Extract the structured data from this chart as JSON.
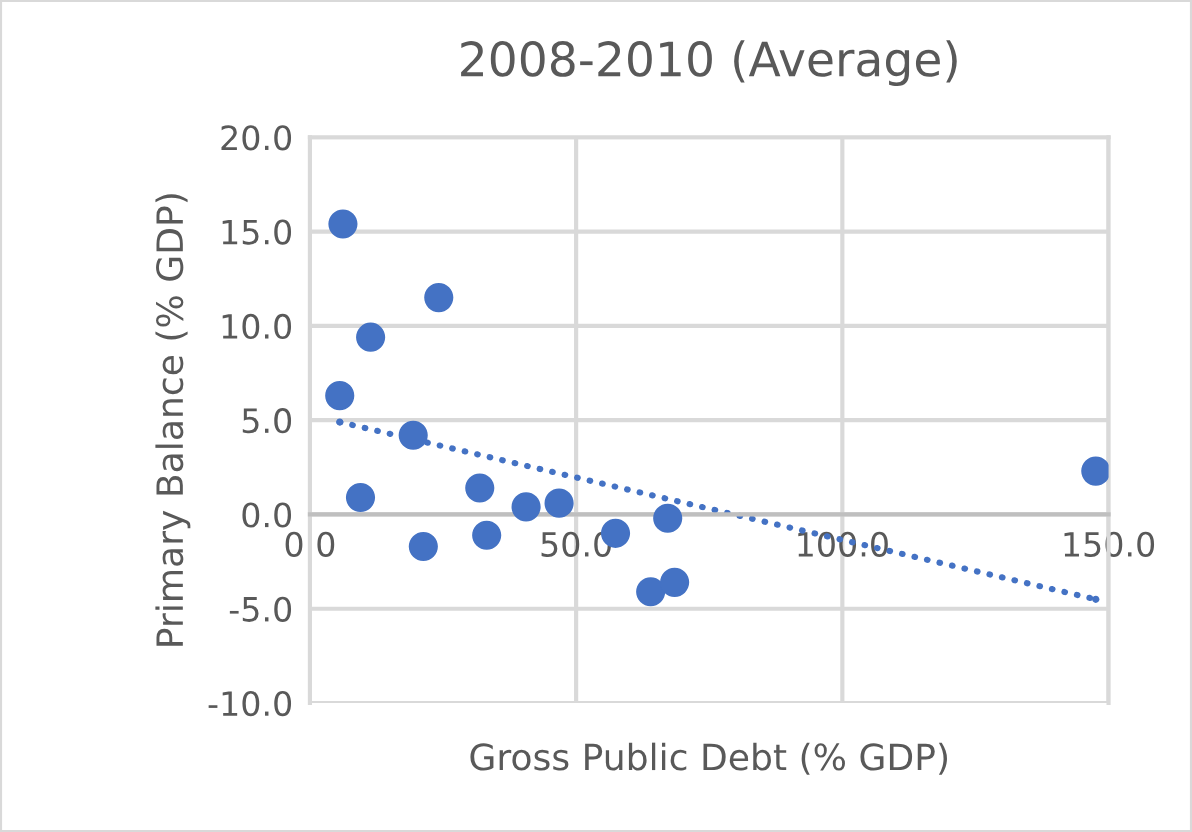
{
  "chart_data": {
    "type": "scatter",
    "title": "2008-2010 (Average)",
    "xlabel": "Gross Public Debt (% GDP)",
    "ylabel": "Primary Balance (% GDP)",
    "series": [
      {
        "color": "#4472c4",
        "x": [
          6.2,
          24.2,
          11.4,
          5.6,
          19.4,
          9.5,
          21.3,
          31.9,
          33.2,
          40.6,
          46.8,
          57.4,
          67.2,
          64.0,
          68.5,
          147.6
        ],
        "values": [
          15.4,
          11.5,
          9.4,
          6.3,
          4.2,
          0.9,
          -1.7,
          1.4,
          -1.1,
          0.4,
          0.6,
          -1.0,
          -0.2,
          -4.1,
          -3.6,
          2.3
        ],
        "marker": "circle"
      },
      {
        "type": "line",
        "color": "#4472c4",
        "x": [
          5.6,
          147.6
        ],
        "values": [
          4.9,
          -4.5
        ],
        "line_style": "dotted",
        "marker": "none"
      }
    ],
    "xlim": [
      0,
      150
    ],
    "ylim": [
      -10,
      20
    ],
    "xticks": [
      {
        "value": 0,
        "label": "0.0"
      },
      {
        "value": 50,
        "label": "50.0"
      },
      {
        "value": 100,
        "label": "100.0"
      },
      {
        "value": 150,
        "label": "150.0"
      }
    ],
    "yticks": [
      {
        "value": -10,
        "label": "-10.0"
      },
      {
        "value": -5,
        "label": "-5.0"
      },
      {
        "value": 0,
        "label": "0.0"
      },
      {
        "value": 5,
        "label": "5.0"
      },
      {
        "value": 10,
        "label": "10.0"
      },
      {
        "value": 15,
        "label": "15.0"
      },
      {
        "value": 20,
        "label": "20.0"
      }
    ],
    "grid": true,
    "legend": false
  }
}
